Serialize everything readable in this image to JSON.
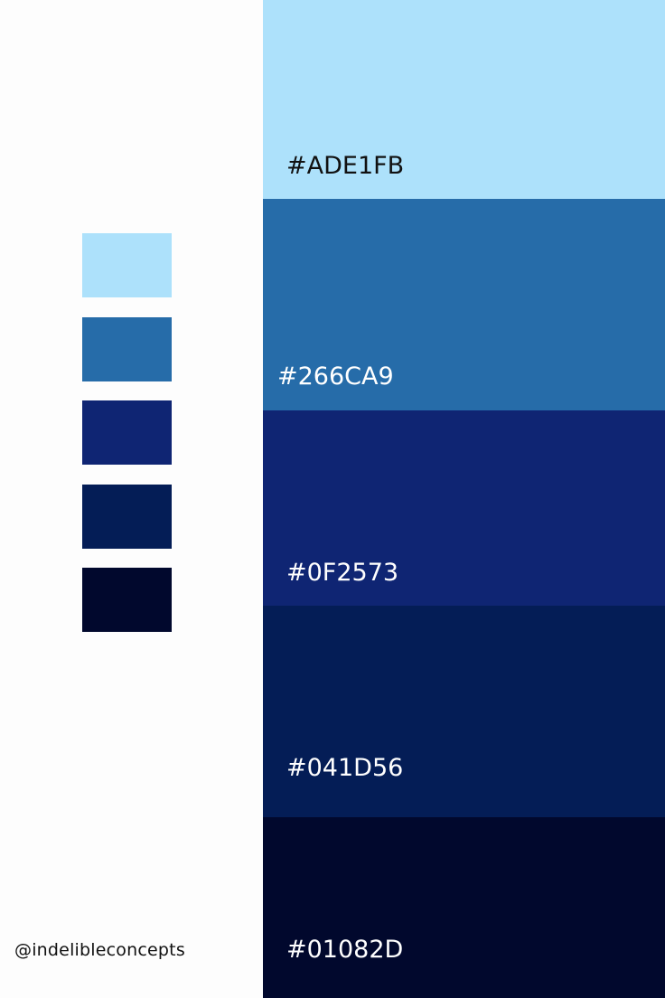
{
  "colors": [
    {
      "hex": "#ADE1FB",
      "label": "#ADE1FB",
      "text_color": "#111111"
    },
    {
      "hex": "#266CA9",
      "label": "#266CA9",
      "text_color": "#ffffff"
    },
    {
      "hex": "#0F2573",
      "label": "#0F2573",
      "text_color": "#ffffff"
    },
    {
      "hex": "#041D56",
      "label": "#041D56",
      "text_color": "#ffffff"
    },
    {
      "hex": "#01082D",
      "label": "#01082D",
      "text_color": "#ffffff"
    }
  ],
  "handle": "@indelibleconcepts"
}
